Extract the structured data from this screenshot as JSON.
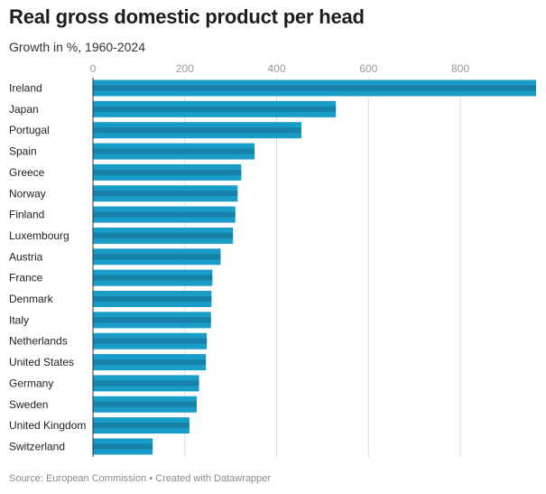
{
  "header": {
    "title": "Real gross domestic product per head",
    "subtitle": "Growth in %, 1960-2024"
  },
  "footer": {
    "source": "Source: European Commission • Created with Datawrapper"
  },
  "colors": {
    "bar": "#1a9cc9",
    "bar_stripe": "#1781a8",
    "grid": "#dddddd",
    "axis": "#333333"
  },
  "chart_data": {
    "type": "bar",
    "orientation": "horizontal",
    "title": "Real gross domestic product per head",
    "subtitle": "Growth in %, 1960-2024",
    "xlim": [
      0,
      965
    ],
    "xticks": [
      0,
      200,
      400,
      600,
      800
    ],
    "grid": true,
    "categories": [
      "Ireland",
      "Japan",
      "Portugal",
      "Spain",
      "Greece",
      "Norway",
      "Finland",
      "Luxembourg",
      "Austria",
      "France",
      "Denmark",
      "Italy",
      "Netherlands",
      "United States",
      "Germany",
      "Sweden",
      "United Kingdom",
      "Switzerland"
    ],
    "values": [
      965,
      529,
      454,
      352,
      323,
      315,
      310,
      305,
      278,
      260,
      258,
      257,
      248,
      246,
      231,
      226,
      210,
      130
    ]
  }
}
